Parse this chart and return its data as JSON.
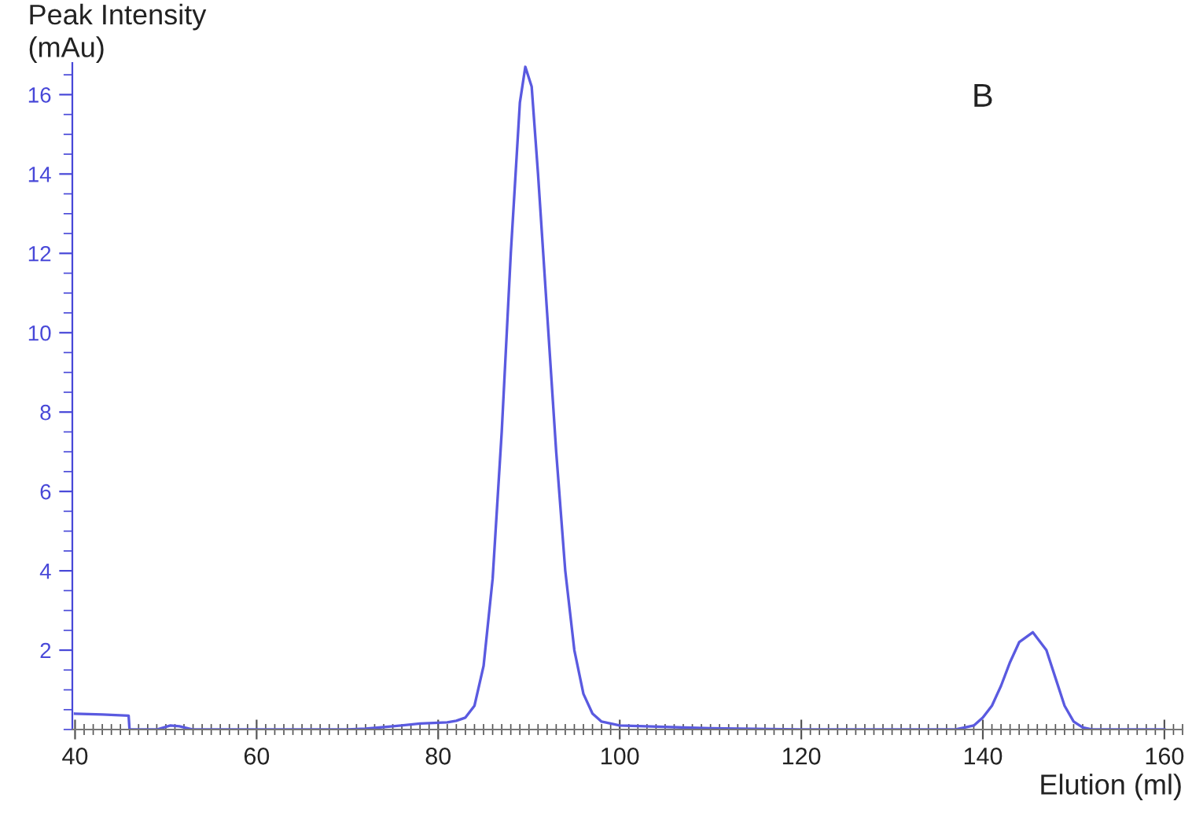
{
  "chart_data": {
    "type": "line",
    "xlabel": "Elution (ml)",
    "ylabel": "Peak Intensity\n(mAu)",
    "annotations": [
      "B"
    ],
    "series": [
      {
        "color": "#5a5ae0",
        "x": [
          40,
          43,
          45.9,
          46,
          49,
          50.5,
          51.5,
          53,
          60,
          70,
          72,
          75,
          78,
          81,
          82,
          83,
          84,
          85,
          86,
          87,
          88,
          89,
          89.6,
          90.3,
          91,
          92,
          93,
          94,
          95,
          96,
          97,
          98,
          100,
          110,
          120,
          130,
          137,
          139,
          140,
          141,
          142,
          143,
          144,
          145.5,
          147,
          148,
          149,
          150,
          151,
          152,
          155,
          160
        ],
        "values": [
          0.4,
          0.38,
          0.35,
          0,
          0,
          0.1,
          0.08,
          0,
          0,
          0,
          0.02,
          0.08,
          0.15,
          0.18,
          0.22,
          0.3,
          0.6,
          1.6,
          3.8,
          7.5,
          12,
          15.8,
          16.7,
          16.2,
          14,
          10.5,
          7,
          4,
          2,
          0.9,
          0.4,
          0.2,
          0.1,
          0.03,
          0,
          0,
          0,
          0.1,
          0.3,
          0.6,
          1.1,
          1.7,
          2.2,
          2.45,
          2,
          1.3,
          0.6,
          0.2,
          0.05,
          0,
          0,
          0
        ]
      }
    ],
    "xlim": [
      39.7,
      162
    ],
    "ylim": [
      0,
      16.8
    ],
    "xticks": [
      40,
      60,
      80,
      100,
      120,
      140,
      160
    ],
    "yticks": [
      2,
      4,
      6,
      8,
      10,
      12,
      14,
      16
    ],
    "grid": false,
    "legend": false,
    "marker": "none",
    "line_style": "solid"
  }
}
